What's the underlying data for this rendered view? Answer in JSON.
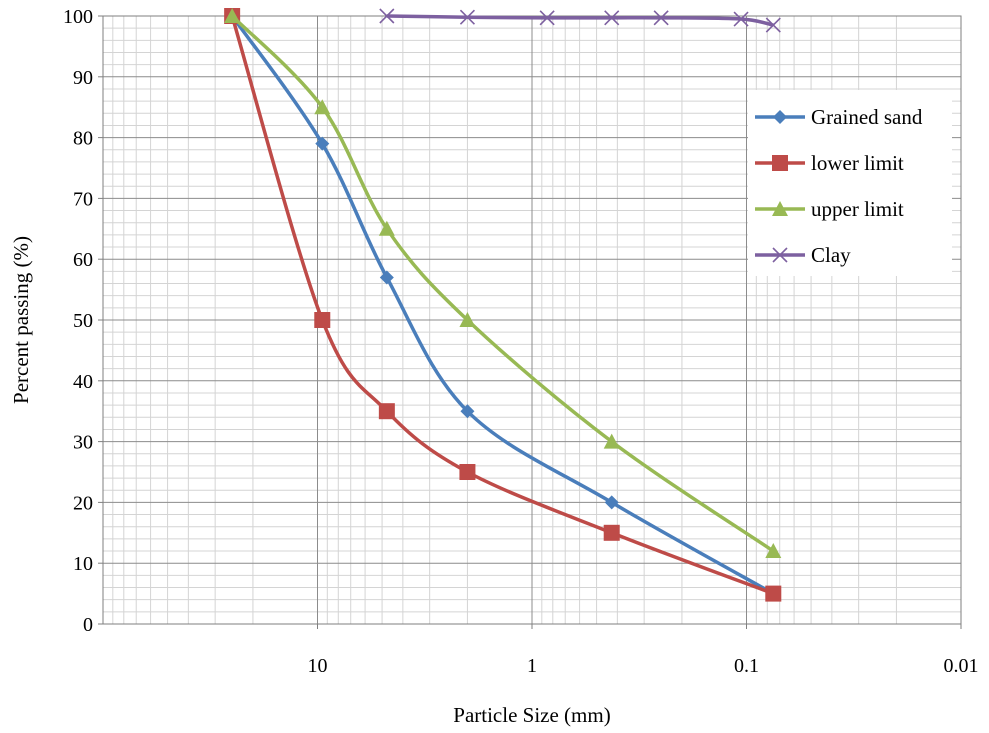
{
  "chart_data": {
    "type": "line",
    "title": "",
    "xlabel": "Particle Size (mm)",
    "ylabel": "Percent passing (%)",
    "x_scale": "log-reversed",
    "xlim": [
      100,
      0.01
    ],
    "ylim": [
      0,
      100
    ],
    "x_ticks": [
      {
        "value": 10,
        "label": "10"
      },
      {
        "value": 1,
        "label": "1"
      },
      {
        "value": 0.1,
        "label": "0.1"
      },
      {
        "value": 0.01,
        "label": "0.01"
      }
    ],
    "y_ticks": [
      "0",
      "10",
      "20",
      "30",
      "40",
      "50",
      "60",
      "70",
      "80",
      "90",
      "100"
    ],
    "grid": true,
    "legend_position": "right",
    "series": [
      {
        "name": "Grained sand",
        "color": "#4a7ebb",
        "marker": "diamond",
        "x": [
          25,
          9.5,
          4.75,
          2,
          0.425,
          0.075
        ],
        "y": [
          100,
          79,
          57,
          35,
          20,
          5
        ]
      },
      {
        "name": "lower limit",
        "color": "#be4b48",
        "marker": "square",
        "x": [
          25,
          9.5,
          4.75,
          2,
          0.425,
          0.075
        ],
        "y": [
          100,
          50,
          35,
          25,
          15,
          5
        ]
      },
      {
        "name": "upper limit",
        "color": "#98b954",
        "marker": "triangle",
        "x": [
          25,
          9.5,
          4.75,
          2,
          0.425,
          0.075
        ],
        "y": [
          100,
          85,
          65,
          50,
          30,
          12
        ]
      },
      {
        "name": "Clay",
        "color": "#7d60a0",
        "marker": "x",
        "x": [
          4.75,
          2,
          0.85,
          0.425,
          0.25,
          0.106,
          0.075
        ],
        "y": [
          100,
          99.8,
          99.7,
          99.7,
          99.7,
          99.5,
          98.5
        ]
      }
    ]
  }
}
